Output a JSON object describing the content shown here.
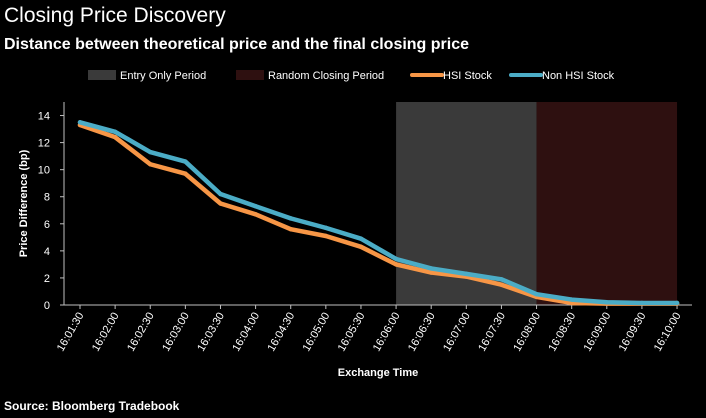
{
  "header": {
    "title": "Closing Price Discovery",
    "subtitle": "Distance between theoretical price and the final closing price"
  },
  "footer": {
    "source": "Source: Bloomberg Tradebook"
  },
  "legend": [
    {
      "label": "Entry Only Period",
      "color": "#3a3a3a",
      "kind": "box"
    },
    {
      "label": "Random Closing Period",
      "color": "#2e1010",
      "kind": "box"
    },
    {
      "label": "HSI Stock",
      "color": "#f79646",
      "kind": "line"
    },
    {
      "label": "Non HSI Stock",
      "color": "#4bacc6",
      "kind": "line"
    }
  ],
  "chart_data": {
    "type": "line",
    "title": "Closing Price Discovery",
    "subtitle": "Distance between theoretical price and the final closing price",
    "xlabel": "Exchange Time",
    "ylabel": "Price Difference (bp)",
    "ylim": [
      0,
      15
    ],
    "yticks": [
      0,
      2,
      4,
      6,
      8,
      10,
      12,
      14
    ],
    "categories": [
      "16:01:30",
      "16:02:00",
      "16:02:30",
      "16:03:00",
      "16:03:30",
      "16:04:00",
      "16:04:30",
      "16:05:00",
      "16:05:30",
      "16:06:00",
      "16:06:30",
      "16:07:00",
      "16:07:30",
      "16:08:00",
      "16:08:30",
      "16:09:00",
      "16:09:30",
      "16:10:00"
    ],
    "series": [
      {
        "name": "HSI Stock",
        "color": "#f79646",
        "values": [
          13.3,
          12.4,
          10.4,
          9.7,
          7.5,
          6.7,
          5.6,
          5.1,
          4.3,
          3.0,
          2.4,
          2.1,
          1.5,
          0.6,
          0.15,
          0.1,
          0.1,
          0.1
        ]
      },
      {
        "name": "Non HSI Stock",
        "color": "#4bacc6",
        "values": [
          13.5,
          12.8,
          11.3,
          10.6,
          8.2,
          7.3,
          6.4,
          5.7,
          4.9,
          3.4,
          2.7,
          2.3,
          1.9,
          0.8,
          0.4,
          0.2,
          0.15,
          0.15
        ]
      }
    ],
    "shaded_regions": [
      {
        "label": "Entry Only Period",
        "from": "16:06:00",
        "to": "16:08:00",
        "color": "#3a3a3a"
      },
      {
        "label": "Random Closing Period",
        "from": "16:08:00",
        "to": "16:10:00",
        "color": "#2e1010"
      }
    ],
    "grid": false,
    "legend_position": "top"
  }
}
